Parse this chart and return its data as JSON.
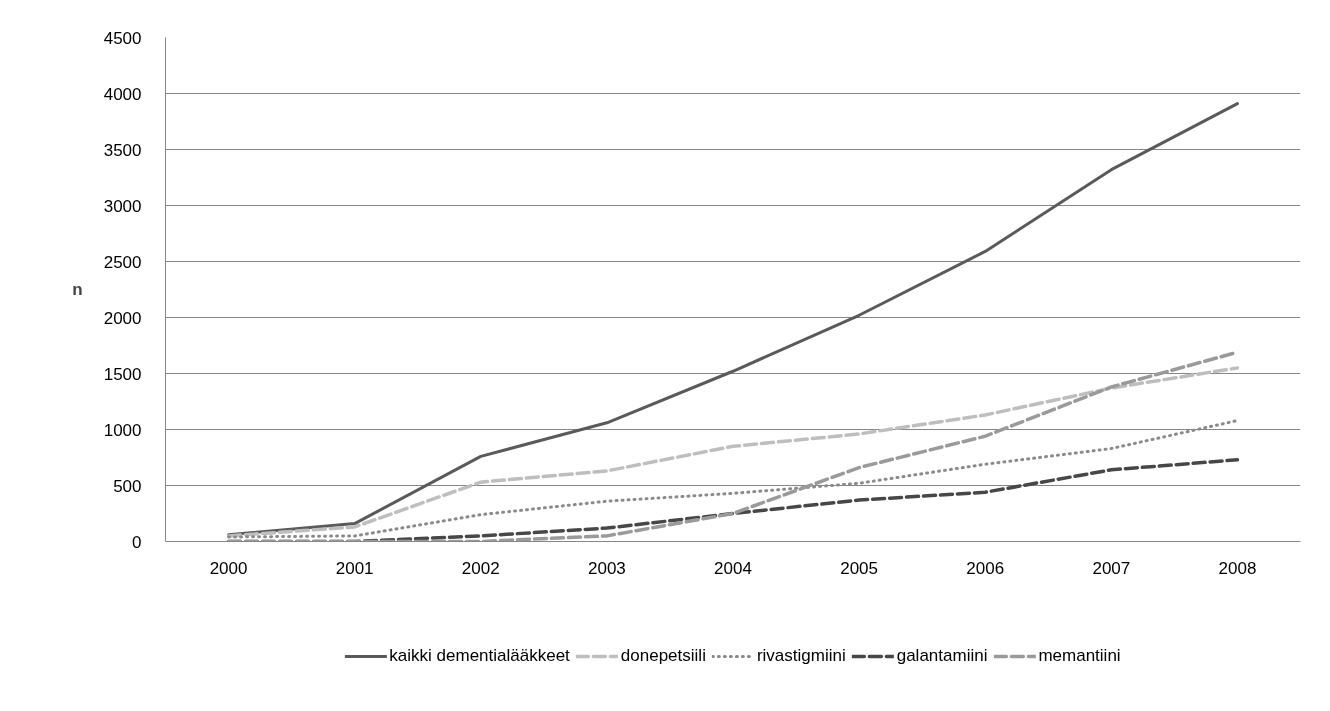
{
  "chart_data": {
    "type": "line",
    "ylabel": "n",
    "categories": [
      "2000",
      "2001",
      "2002",
      "2003",
      "2004",
      "2005",
      "2006",
      "2007",
      "2008"
    ],
    "ylim": [
      0,
      4500
    ],
    "yticks": [
      0,
      500,
      1000,
      1500,
      2000,
      2500,
      3000,
      3500,
      4000,
      4500
    ],
    "grid": "y",
    "legend": "bottom",
    "series": [
      {
        "name": "kaikki dementialääkkeet",
        "color": "#5a5a5a",
        "line_style": "solid",
        "values": [
          60,
          160,
          760,
          1060,
          1520,
          2020,
          2590,
          3320,
          3910
        ]
      },
      {
        "name": "donepetsiili",
        "color": "#bebebe",
        "line_style": "dashed",
        "values": [
          50,
          130,
          530,
          630,
          850,
          960,
          1130,
          1370,
          1550
        ]
      },
      {
        "name": "rivastigmiini",
        "color": "#8a8a8a",
        "line_style": "dotted",
        "values": [
          40,
          50,
          240,
          360,
          430,
          520,
          690,
          830,
          1080
        ]
      },
      {
        "name": "galantamiini",
        "color": "#474747",
        "line_style": "dashed",
        "values": [
          0,
          0,
          50,
          120,
          250,
          370,
          440,
          640,
          730
        ]
      },
      {
        "name": "memantiini",
        "color": "#9a9a9a",
        "line_style": "dashed",
        "values": [
          0,
          0,
          0,
          50,
          250,
          660,
          940,
          1380,
          1690
        ]
      }
    ]
  }
}
